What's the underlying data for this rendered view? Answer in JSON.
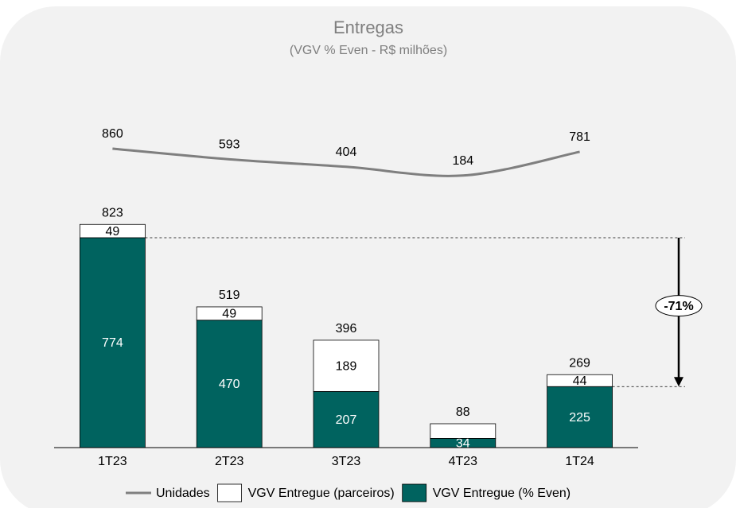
{
  "chart_data": {
    "type": "bar",
    "stacked": true,
    "title": "Entregas",
    "subtitle": "(VGV % Even - R$ milhões)",
    "categories": [
      "1T23",
      "2T23",
      "3T23",
      "4T23",
      "1T24"
    ],
    "ylim": [
      0,
      900
    ],
    "y2lim": [
      -200,
      1400
    ],
    "series": [
      {
        "name": "VGV Entregue (% Even)",
        "color": "#00635f",
        "values": [
          774,
          470,
          207,
          34,
          225
        ]
      },
      {
        "name": "VGV Entregue (parceiros)",
        "color": "#ffffff",
        "values": [
          49,
          49,
          189,
          54,
          44
        ],
        "value_labels": [
          "49",
          "49",
          "189",
          null,
          "44"
        ]
      },
      {
        "name": "Unidades",
        "type": "line",
        "axis": "y2",
        "color": "#7f7f7f",
        "values": [
          860,
          593,
          404,
          184,
          781
        ]
      }
    ],
    "totals": [
      823,
      519,
      396,
      88,
      269
    ],
    "annotation": "-71%",
    "legend": "bottom"
  }
}
